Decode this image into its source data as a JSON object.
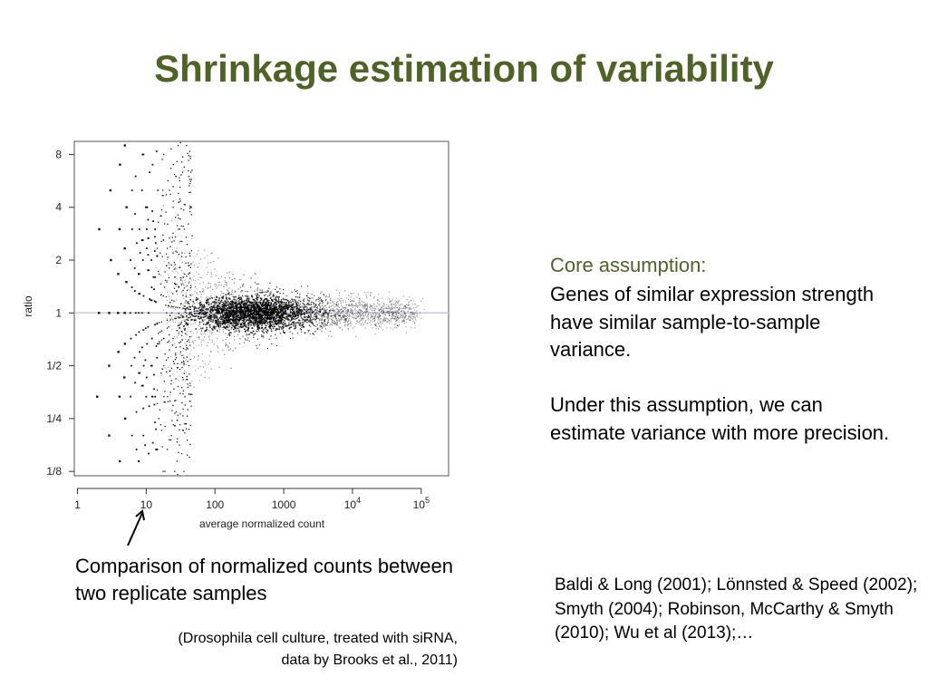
{
  "slide": {
    "title": "Shrinkage estimation of variability",
    "core_label": "Core assumption:",
    "core_text": "Genes of similar expression strength have similar sample-to-sample variance.",
    "core_text2": "Under this assumption, we can estimate variance with more precision.",
    "comparison": "Comparison of normalized counts between two replicate samples",
    "source_line1": "(Drosophila cell culture, treated with siRNA,",
    "source_line2": "data by Brooks et al., 2011)",
    "refs": "Baldi & Long (2001); Lönnsted & Speed (2002); Smyth (2004); Robinson, McCarthy & Smyth (2010); Wu et al (2013);…"
  },
  "chart_data": {
    "type": "scatter",
    "xlabel": "average normalized count",
    "ylabel": "ratio",
    "x_scale": "log10",
    "y_scale": "log2",
    "xlim": [
      0.9,
      250000
    ],
    "ylim": [
      0.118,
      9.5
    ],
    "x_ticks": [
      1,
      10,
      100,
      1000,
      10000,
      100000
    ],
    "x_tick_labels": [
      {
        "base": "1",
        "exp": ""
      },
      {
        "base": "10",
        "exp": ""
      },
      {
        "base": "100",
        "exp": ""
      },
      {
        "base": "1000",
        "exp": ""
      },
      {
        "base": "10",
        "exp": "4"
      },
      {
        "base": "10",
        "exp": "5"
      }
    ],
    "y_ticks": [
      0.125,
      0.25,
      0.5,
      1,
      2,
      4,
      8
    ],
    "y_tick_labels": [
      "1/8",
      "1/4",
      "1/2",
      "1",
      "2",
      "4",
      "8"
    ],
    "reference_line_y": 1,
    "reference_line_color": "#c8c8e6",
    "point_color": "#000000",
    "points_description_values": {
      "x_range": [
        2.5,
        150000
      ],
      "ratio_spread_at_low_count": [
        0.125,
        8
      ],
      "ratio_spread_at_high_count": [
        0.8,
        1.25
      ],
      "densest_region_x": [
        300,
        3000
      ]
    }
  }
}
